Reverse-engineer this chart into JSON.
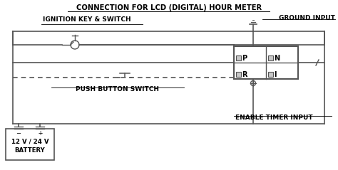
{
  "title": "CONNECTION FOR LCD (DIGITAL) HOUR METER",
  "line_color": "#555555",
  "label_ignition": "IGNITION KEY & SWITCH",
  "label_ground": "GROUND INPUT",
  "label_push": "PUSH BUTTON SWITCH",
  "label_enable": "ENABLE TIMER INPUT",
  "label_battery_line1": "12 V / 24 V",
  "label_battery_line2": "BATTERY",
  "meter_labels": [
    "P",
    "N",
    "R",
    "I"
  ],
  "figsize": [
    4.74,
    2.39
  ],
  "dpi": 100
}
